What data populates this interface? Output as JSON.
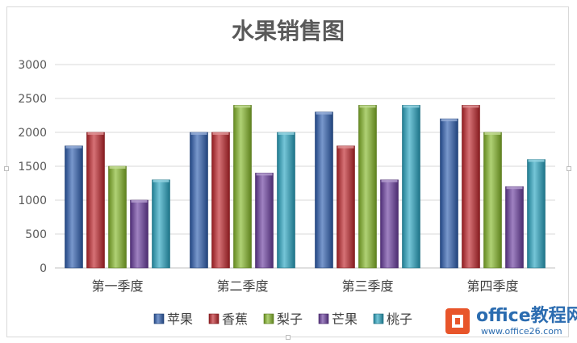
{
  "chart_data": {
    "type": "bar",
    "title": "水果销售图",
    "categories": [
      "第一季度",
      "第二季度",
      "第三季度",
      "第四季度"
    ],
    "series": [
      {
        "name": "苹果",
        "color": "#2f5fb0",
        "values": [
          1800,
          2000,
          2300,
          2200
        ]
      },
      {
        "name": "香蕉",
        "color": "#c0262c",
        "values": [
          2000,
          2000,
          1800,
          2400
        ]
      },
      {
        "name": "梨子",
        "color": "#86b82a",
        "values": [
          1500,
          2400,
          2400,
          2000
        ]
      },
      {
        "name": "芒果",
        "color": "#6b3fa0",
        "values": [
          1000,
          1400,
          1300,
          1200
        ]
      },
      {
        "name": "桃子",
        "color": "#2aa6c2",
        "values": [
          1300,
          2000,
          2400,
          1600
        ]
      }
    ],
    "ylim": [
      0,
      3000
    ],
    "yticks": [
      0,
      500,
      1000,
      1500,
      2000,
      2500,
      3000
    ],
    "grid": true,
    "legend_position": "bottom",
    "xlabel": "",
    "ylabel": ""
  },
  "watermark": {
    "brand": "office教程网",
    "url": "www.office26.com"
  }
}
